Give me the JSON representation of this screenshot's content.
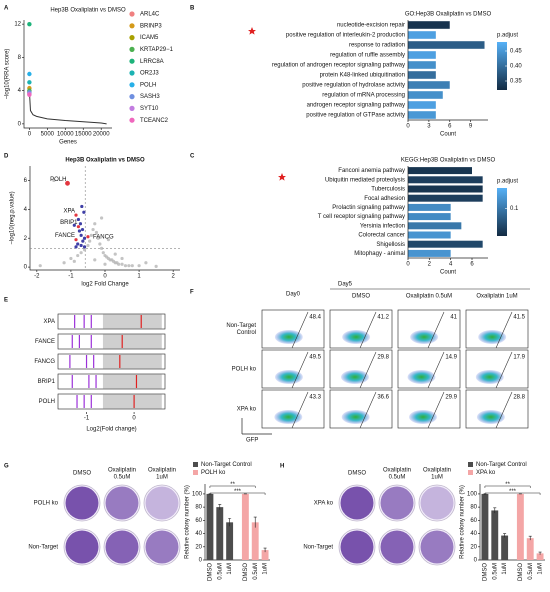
{
  "panel_labels": [
    "A",
    "B",
    "C",
    "D",
    "E",
    "F",
    "G",
    "H"
  ],
  "chart_data": [
    {
      "type": "line",
      "title": "Hep3B Oxaliplatin vs DMSO",
      "xlabel": "Genes",
      "ylabel": "−log10(RRA score)",
      "x": [
        0,
        300,
        1000,
        2000,
        5000,
        10000,
        15000,
        20000,
        21500
      ],
      "values": [
        4,
        1.6,
        1.1,
        0.9,
        0.6,
        0.4,
        0.25,
        0.1,
        0
      ],
      "color": "#333333",
      "xlim": [
        -1500,
        23000
      ],
      "ylim": [
        -0.5,
        12.5
      ],
      "xticks": [
        0,
        5000,
        10000,
        15000,
        20000
      ],
      "yticks": [
        0,
        4,
        8,
        12
      ],
      "series": [
        {
          "name": "ARL4C",
          "color": "#f08080",
          "x": [
            0
          ],
          "values": [
            3.7
          ]
        },
        {
          "name": "BRINP3",
          "color": "#d49a1a",
          "x": [
            0
          ],
          "values": [
            4.3
          ]
        },
        {
          "name": "ICAM5",
          "color": "#a8a000",
          "x": [
            0
          ],
          "values": [
            3.9
          ]
        },
        {
          "name": "KRTAP29−1",
          "color": "#4cb050",
          "x": [
            0
          ],
          "values": [
            4.0
          ]
        },
        {
          "name": "LRRC8A",
          "color": "#1db37a",
          "x": [
            0
          ],
          "values": [
            12
          ]
        },
        {
          "name": "OR2J3",
          "color": "#1cb3b3",
          "x": [
            0
          ],
          "values": [
            5.0
          ]
        },
        {
          "name": "POLH",
          "color": "#27b0e8",
          "x": [
            0
          ],
          "values": [
            6.0
          ]
        },
        {
          "name": "SASH3",
          "color": "#6f8fe0",
          "x": [
            0
          ],
          "values": [
            3.8
          ]
        },
        {
          "name": "SYT10",
          "color": "#c27ce0",
          "x": [
            0
          ],
          "values": [
            3.6
          ]
        },
        {
          "name": "TCEANC2",
          "color": "#ef67bd",
          "x": [
            0
          ],
          "values": [
            3.5
          ]
        }
      ]
    },
    {
      "type": "barh",
      "title": "GO:Hep3B Oxaliplatin vs DMSO",
      "xlabel": "Count",
      "categories": [
        "nucleotide-excision repair",
        "positive regulation of interleukin-2 production",
        "response to radiation",
        "regulation of ruffle assembly",
        "regulation of androgen receptor signaling pathway",
        "protein K48-linked ubiquitination",
        "positive regulation of hydrolase activity",
        "regulation of mRNA processing",
        "androgen receptor signaling pathway",
        "positive regulation of GTPase activity"
      ],
      "values": [
        6,
        4,
        11,
        4,
        4,
        4,
        6,
        5,
        4,
        4
      ],
      "padj": [
        0.33,
        0.46,
        0.38,
        0.46,
        0.44,
        0.4,
        0.42,
        0.44,
        0.46,
        0.45
      ],
      "colorscale": [
        "#132b43",
        "#56b1f7"
      ],
      "clim": [
        0.32,
        0.48
      ],
      "ctitle": "p.adjust",
      "cticks": [
        0.35,
        {
          "value": 0.4,
          "label": "0.40"
        },
        0.45
      ],
      "xlim": [
        0,
        11.5
      ],
      "xticks": [
        0,
        3,
        6,
        9
      ]
    },
    {
      "type": "barh",
      "title": "KEGG:Hep3B Oxaliplatin vs DMSO",
      "xlabel": "Count",
      "categories": [
        "Fanconi anemia pathway",
        "Ubiquitin mediated proteolysis",
        "Tuberculosis",
        "Focal adhesion",
        "Prolactin signaling pathway",
        "T cell receptor signaling pathway",
        "Yersinia infection",
        "Colorectal cancer",
        "Shigellosis",
        "Mitophagy - animal"
      ],
      "values": [
        6,
        7,
        7,
        7,
        4,
        4,
        5,
        4,
        7,
        4
      ],
      "padj": [
        0.03,
        0.04,
        0.03,
        0.04,
        0.12,
        0.12,
        0.1,
        0.13,
        0.05,
        0.13
      ],
      "colorscale": [
        "#132b43",
        "#56b1f7"
      ],
      "clim": [
        0.02,
        0.16
      ],
      "ctitle": "p.adjust",
      "cticks": [
        0.1
      ],
      "xlim": [
        0,
        7.5
      ],
      "xticks": [
        0,
        2,
        4,
        6
      ]
    },
    {
      "type": "scatter",
      "title": "Hep3B Oxaliplatin vs DMSO",
      "xlabel": "log2 Fold Change",
      "ylabel": "−log10(neg.p.value)",
      "xlim": [
        -2.2,
        2.2
      ],
      "ylim": [
        -0.2,
        7
      ],
      "xticks": [
        -2,
        -1,
        0,
        1,
        2
      ],
      "yticks": [
        0,
        2,
        4,
        6
      ],
      "hlines": [
        1.3
      ],
      "vlines": [
        -0.58
      ],
      "series": [
        {
          "color": "#b5b5b5",
          "x": [
            -1.9,
            -1.5,
            -1.2,
            -1.0,
            -0.9,
            -0.8,
            -0.7,
            -0.6,
            -0.5,
            -0.45,
            -0.4,
            -0.35,
            -0.3,
            -0.25,
            -0.2,
            -0.15,
            -0.1,
            -0.05,
            0,
            0.05,
            0.1,
            0.15,
            0.2,
            0.25,
            0.3,
            0.35,
            0.4,
            0.5,
            0.6,
            0.7,
            0.8,
            1.0,
            1.2,
            1.5,
            -0.3,
            0,
            0.3,
            -0.1,
            0.1,
            0.5
          ],
          "values": [
            0.1,
            6.0,
            0.3,
            0.6,
            0.4,
            0.8,
            1.0,
            1.2,
            1.5,
            1.8,
            2.2,
            2.6,
            3.0,
            2.4,
            2.0,
            1.6,
            1.3,
            1.0,
            0.8,
            0.7,
            0.6,
            0.5,
            0.5,
            0.4,
            0.3,
            0.3,
            0.2,
            0.2,
            0.1,
            0.1,
            0.1,
            0.1,
            0.3,
            0.05,
            0.5,
            0.2,
            0.9,
            3.4,
            1.9,
            0.6
          ]
        },
        {
          "color": "#2a2a9c",
          "x": [
            -0.6,
            -0.65,
            -0.7,
            -0.72,
            -0.75,
            -0.8,
            -0.62,
            -0.68,
            -0.9,
            -0.7,
            -0.66,
            -0.78,
            -0.6,
            -0.85
          ],
          "values": [
            1.4,
            1.8,
            2.2,
            3.0,
            2.5,
            1.6,
            3.8,
            4.2,
            2.9,
            1.5,
            2.6,
            3.3,
            2.0,
            1.4
          ]
        },
        {
          "color": "#e0202a",
          "x": [
            -1.1,
            -0.85,
            -0.78,
            -0.85,
            -0.5
          ],
          "values": [
            5.8,
            3.6,
            2.8,
            1.9,
            2.1
          ],
          "labels": [
            "POLH",
            "XPA",
            "BRIP1",
            "FANCE",
            "FANCG"
          ]
        }
      ]
    },
    {
      "type": "rug",
      "xlabel": "Log2(Fold change)",
      "categories": [
        "XPA",
        "FANCE",
        "FANCG",
        "BRIP1",
        "POLH"
      ],
      "sgrnas": [
        [
          -1.25,
          -1.05,
          -0.9
        ],
        [
          -1.3,
          -1.15,
          -0.9
        ],
        [
          -1.35,
          -1.0,
          -0.85
        ],
        [
          -1.3,
          -0.95,
          -0.8
        ],
        [
          -1.2,
          -1.05,
          -0.9
        ]
      ],
      "red": [
        0.15,
        -0.25,
        -0.3,
        0.05,
        0.0
      ],
      "color": "#9b30d9",
      "xlim": [
        -1.6,
        0.65
      ],
      "xticks": [
        -1,
        0
      ]
    },
    {
      "type": "grouped_bar",
      "ylabel": "Relative colony number (%)",
      "categories": [
        "DMSO",
        "0.5uM",
        "1uM"
      ],
      "series": [
        {
          "name": "Non-Target Control",
          "color": "#4d4d4d",
          "values": [
            100,
            80,
            57
          ],
          "errors": [
            0,
            4,
            6
          ]
        },
        {
          "name": "POLH ko",
          "color": "#f4a6a6",
          "values": [
            100,
            57,
            15
          ],
          "errors": [
            0,
            8,
            3
          ]
        }
      ],
      "ylim": [
        0,
        115
      ],
      "yticks": [
        0,
        20,
        40,
        60,
        80,
        100
      ],
      "significance": [
        "**",
        "***"
      ]
    },
    {
      "type": "grouped_bar",
      "ylabel": "Relative colony number (%)",
      "categories": [
        "DMSO",
        "0.5uM",
        "1uM"
      ],
      "series": [
        {
          "name": "Non-Target Control",
          "color": "#4d4d4d",
          "values": [
            100,
            75,
            37
          ],
          "errors": [
            0,
            4,
            3
          ]
        },
        {
          "name": "XPA ko",
          "color": "#f4a6a6",
          "values": [
            100,
            33,
            10
          ],
          "errors": [
            0,
            3,
            2
          ]
        }
      ],
      "ylim": [
        0,
        115
      ],
      "yticks": [
        0,
        20,
        40,
        60,
        80,
        100
      ],
      "significance": [
        "**",
        "***"
      ]
    }
  ],
  "flow": {
    "day0": "Day0",
    "day5": "Day5",
    "columns": [
      "DMSO",
      "Oxaliplatin 0.5uM",
      "Oxaliplatin 1uM"
    ],
    "rows": [
      [
        "Non-Target",
        "Control"
      ],
      [
        "POLH ko"
      ],
      [
        "XPA ko"
      ]
    ],
    "values": [
      [
        48.4,
        41.2,
        41.0,
        41.5
      ],
      [
        49.5,
        29.8,
        14.9,
        17.9
      ],
      [
        43.3,
        36.6,
        29.9,
        28.8
      ]
    ],
    "xlabel": "GFP"
  },
  "plates": [
    {
      "columns": [
        [
          "DMSO"
        ],
        [
          "Oxaliplatin",
          "0.5uM"
        ],
        [
          "Oxaliplatin",
          "1uM"
        ]
      ],
      "rows": [
        "POLH ko",
        "Non-Target"
      ]
    },
    {
      "columns": [
        [
          "DMSO"
        ],
        [
          "Oxaliplatin",
          "0.5uM"
        ],
        [
          "Oxaliplatin",
          "1uM"
        ]
      ],
      "rows": [
        "XPA ko",
        "Non-Target"
      ]
    }
  ]
}
